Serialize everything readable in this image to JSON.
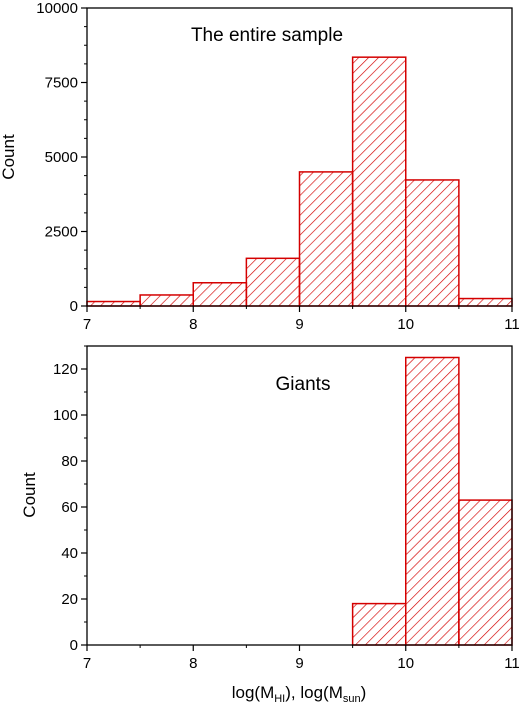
{
  "chart_data": [
    {
      "type": "bar",
      "annotation": "The entire sample",
      "ylabel": "Count",
      "xlim": [
        7,
        11
      ],
      "ylim": [
        0,
        10000
      ],
      "xticks": [
        "7",
        "8",
        "9",
        "10",
        "11"
      ],
      "yticks": [
        "0",
        "2500",
        "5000",
        "7500",
        "10000"
      ],
      "bin_edges": [
        7,
        7.5,
        8,
        8.5,
        9,
        9.5,
        10,
        10.5,
        11
      ],
      "values": [
        150,
        370,
        780,
        1600,
        4500,
        8350,
        4230,
        250
      ],
      "bar_style": "red diagonal hatch",
      "color": "#d40000"
    },
    {
      "type": "bar",
      "annotation": "Giants",
      "ylabel": "Count",
      "xlim": [
        7,
        11
      ],
      "ylim": [
        0,
        130
      ],
      "xticks": [
        "7",
        "8",
        "9",
        "10",
        "11"
      ],
      "yticks": [
        "0",
        "20",
        "40",
        "60",
        "80",
        "100",
        "120"
      ],
      "bin_edges": [
        9.5,
        10,
        10.5,
        11
      ],
      "values": [
        18,
        125,
        63
      ],
      "bar_style": "red diagonal hatch",
      "color": "#d40000"
    }
  ],
  "xlabel": {
    "part1": "log(M",
    "sub1": "HI",
    "part2": "), log(M",
    "sub2": "sun",
    "part3": ")"
  }
}
